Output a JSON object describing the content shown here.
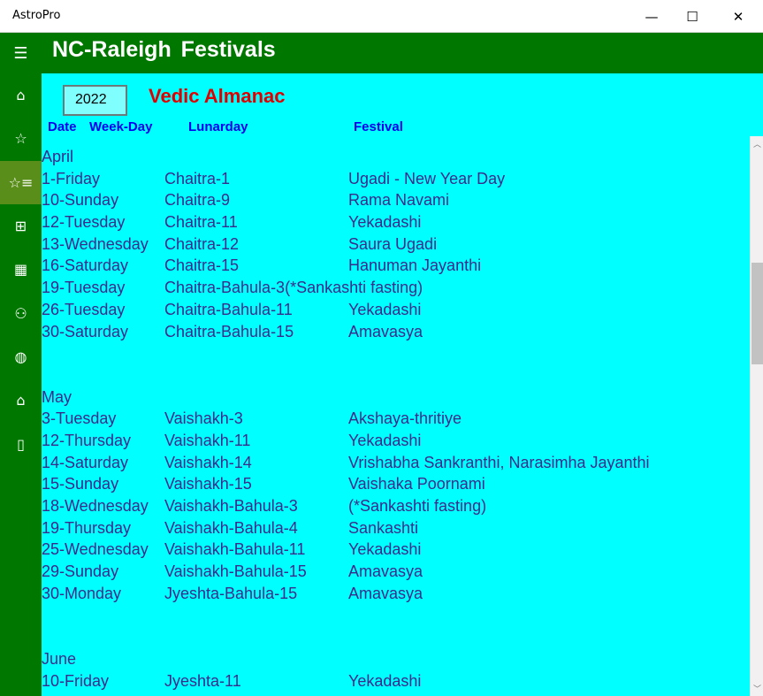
{
  "window": {
    "title": "AstroPro",
    "minimize": "—",
    "maximize": "☐",
    "close": "✕"
  },
  "header": {
    "title": "NC-Raleigh  Festivals",
    "menu_icon": "☰"
  },
  "sidebar": {
    "items": [
      {
        "name": "home",
        "icon": "⌂"
      },
      {
        "name": "favorites",
        "icon": "☆"
      },
      {
        "name": "festivals",
        "icon": "☆≡",
        "active": true
      },
      {
        "name": "grid",
        "icon": "⊞"
      },
      {
        "name": "calendar",
        "icon": "▦"
      },
      {
        "name": "people",
        "icon": "⚇"
      },
      {
        "name": "globe",
        "icon": "◍"
      },
      {
        "name": "home-tree",
        "icon": "⌂"
      },
      {
        "name": "page",
        "icon": "▯"
      }
    ]
  },
  "controls": {
    "year": "2022",
    "heading": "Vedic Almanac"
  },
  "columns": {
    "date": "Date",
    "weekday": "Week-Day",
    "lunarday": "Lunarday",
    "festival": "Festival"
  },
  "colors": {
    "background": "#00ffff",
    "header": "#007800",
    "text": "#3a2a8c",
    "heading": "#e00000",
    "column_header": "#0000ee"
  },
  "months": [
    {
      "name": "April",
      "rows": [
        {
          "date": "1-Friday",
          "lunar": "Chaitra-1",
          "festival": "Ugadi - New Year Day"
        },
        {
          "date": "10-Sunday",
          "lunar": "Chaitra-9",
          "festival": "Rama Navami"
        },
        {
          "date": "12-Tuesday",
          "lunar": "Chaitra-11",
          "festival": "Yekadashi"
        },
        {
          "date": "13-Wednesday",
          "lunar": "Chaitra-12",
          "festival": "Saura Ugadi"
        },
        {
          "date": "16-Saturday",
          "lunar": "Chaitra-15",
          "festival": "Hanuman Jayanthi"
        },
        {
          "date": "19-Tuesday",
          "lunar": "Chaitra-Bahula-3(*Sankashti fasting)",
          "festival": ""
        },
        {
          "date": "26-Tuesday",
          "lunar": "Chaitra-Bahula-11",
          "festival": "Yekadashi"
        },
        {
          "date": "30-Saturday",
          "lunar": "Chaitra-Bahula-15",
          "festival": "Amavasya"
        }
      ]
    },
    {
      "name": "May",
      "rows": [
        {
          "date": "3-Tuesday",
          "lunar": "Vaishakh-3",
          "festival": "Akshaya-thritiye"
        },
        {
          "date": "12-Thursday",
          "lunar": "Vaishakh-11",
          "festival": "Yekadashi"
        },
        {
          "date": "14-Saturday",
          "lunar": "Vaishakh-14",
          "festival": "Vrishabha Sankranthi, Narasimha Jayanthi"
        },
        {
          "date": "15-Sunday",
          "lunar": "Vaishakh-15",
          "festival": "Vaishaka Poornami"
        },
        {
          "date": "18-Wednesday",
          "lunar": "Vaishakh-Bahula-3",
          "festival": "(*Sankashti fasting)"
        },
        {
          "date": "19-Thursday",
          "lunar": "Vaishakh-Bahula-4",
          "festival": "Sankashti"
        },
        {
          "date": "25-Wednesday",
          "lunar": "Vaishakh-Bahula-11",
          "festival": "Yekadashi"
        },
        {
          "date": "29-Sunday",
          "lunar": "Vaishakh-Bahula-15",
          "festival": "Amavasya"
        },
        {
          "date": "30-Monday",
          "lunar": "Jyeshta-Bahula-15",
          "festival": "Amavasya"
        }
      ]
    },
    {
      "name": "June",
      "rows": [
        {
          "date": "10-Friday",
          "lunar": "Jyeshta-11",
          "festival": "Yekadashi"
        }
      ]
    }
  ]
}
